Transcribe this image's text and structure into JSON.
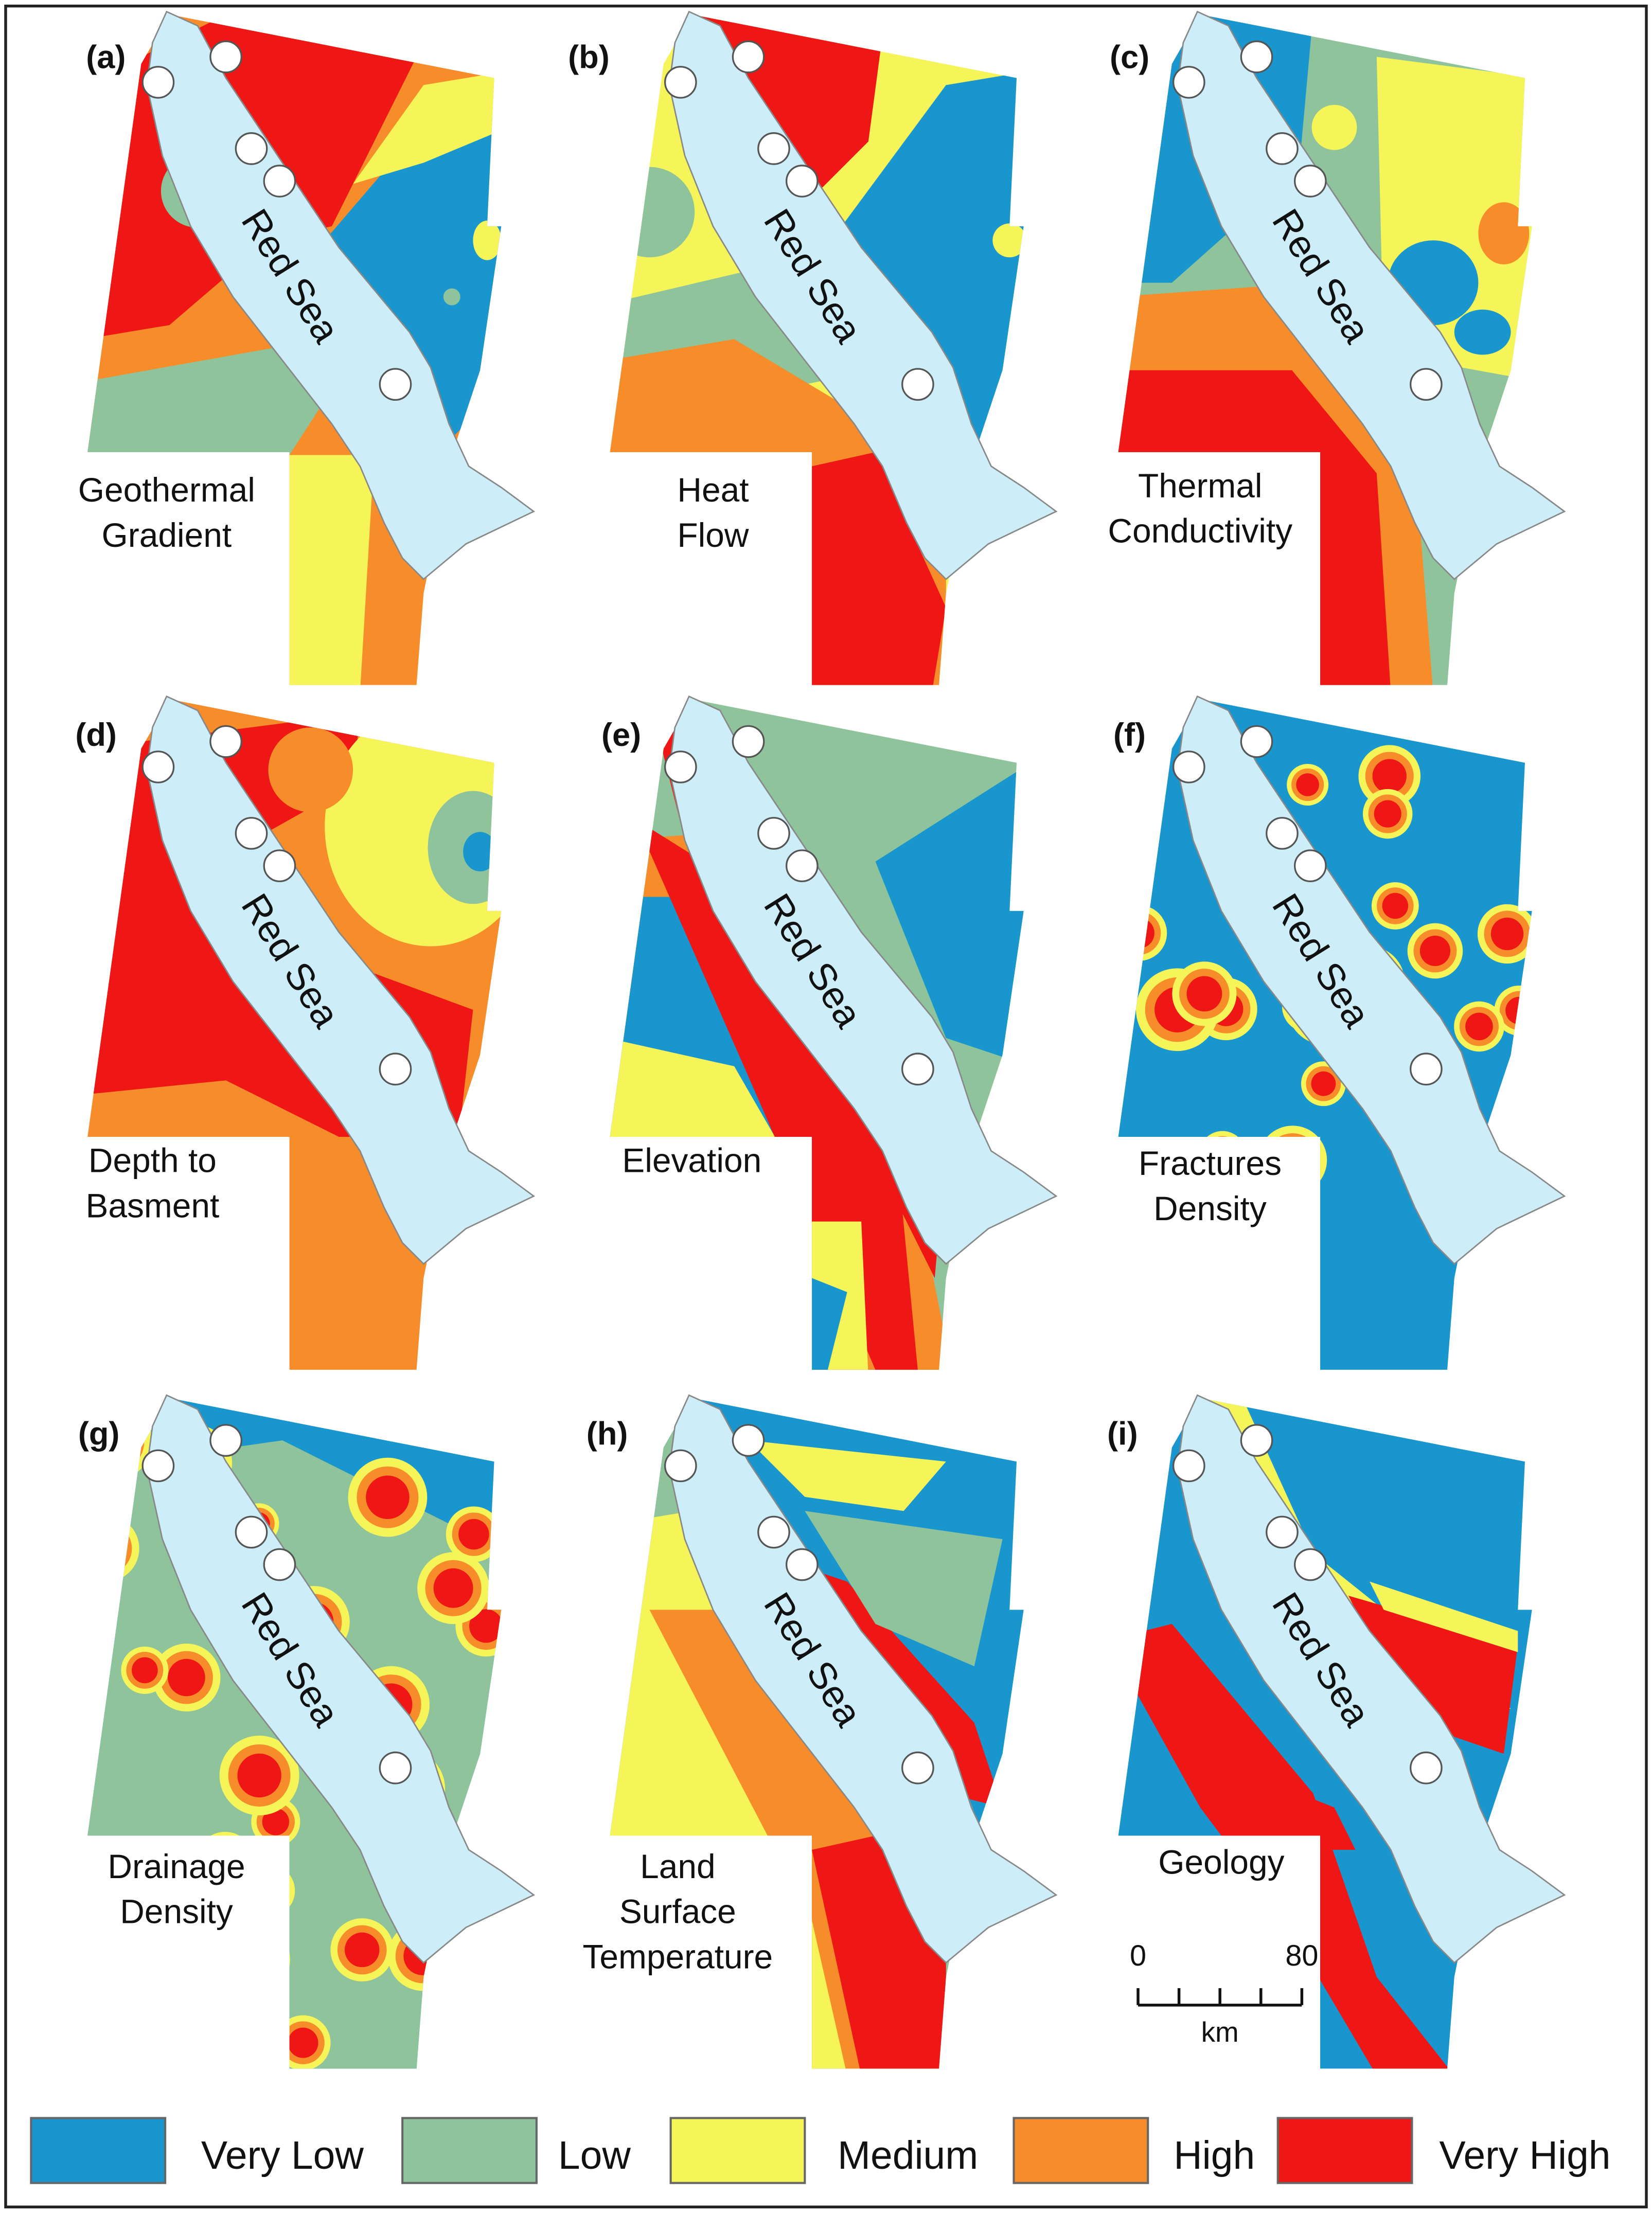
{
  "panels": [
    {
      "letter": "(a)",
      "label": [
        "Geothermal",
        "Gradient"
      ]
    },
    {
      "letter": "(b)",
      "label": [
        "Heat",
        "Flow"
      ]
    },
    {
      "letter": "(c)",
      "label": [
        "Thermal",
        "Conductivity"
      ]
    },
    {
      "letter": "(d)",
      "label": [
        "Depth to",
        "Basment"
      ]
    },
    {
      "letter": "(e)",
      "label": [
        "Elevation"
      ]
    },
    {
      "letter": "(f)",
      "label": [
        "Fractures",
        "Density"
      ]
    },
    {
      "letter": "(g)",
      "label": [
        "Drainage",
        "Density"
      ]
    },
    {
      "letter": "(h)",
      "label": [
        "Land",
        "Surface",
        "Temperature"
      ]
    },
    {
      "letter": "(i)",
      "label": [
        "Geology"
      ]
    }
  ],
  "sea_label": "Red Sea",
  "scale_bar": {
    "start": "0",
    "end": "80",
    "unit": "km"
  },
  "legend": [
    {
      "label": "Very Low",
      "color": "#1a96cf"
    },
    {
      "label": "Low",
      "color": "#8fc39b"
    },
    {
      "label": "Medium",
      "color": "#f5f559"
    },
    {
      "label": "High",
      "color": "#f78d2a"
    },
    {
      "label": "Very High",
      "color": "#ef1616"
    }
  ]
}
